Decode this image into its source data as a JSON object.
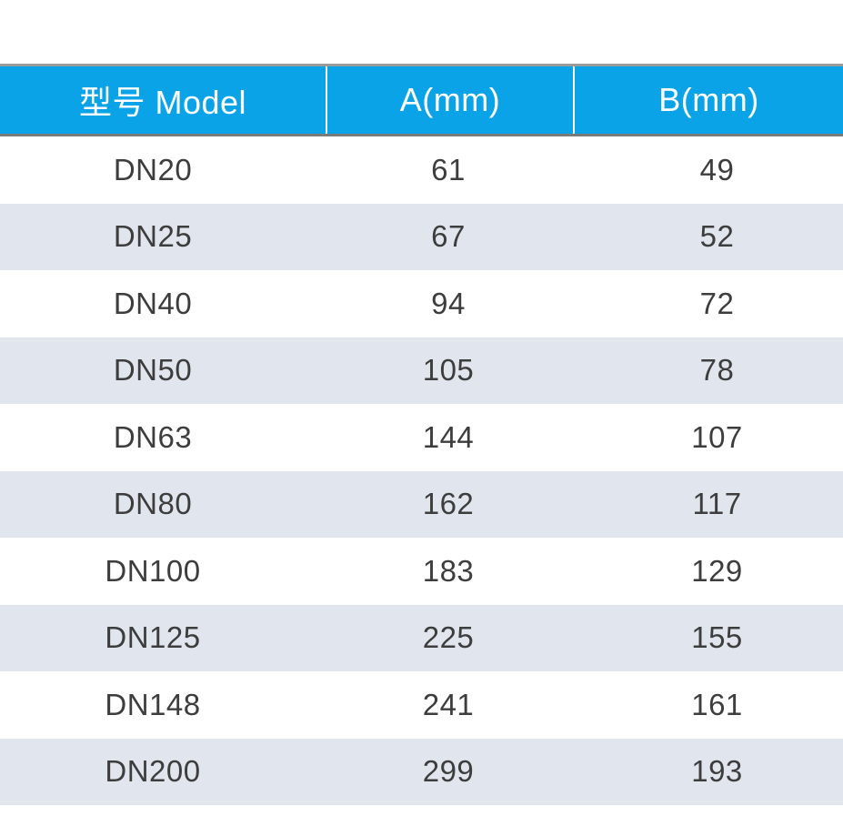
{
  "table": {
    "headers": [
      "型号 Model",
      "A(mm)",
      "B(mm)"
    ],
    "rows": [
      [
        "DN20",
        "61",
        "49"
      ],
      [
        "DN25",
        "67",
        "52"
      ],
      [
        "DN40",
        "94",
        "72"
      ],
      [
        "DN50",
        "105",
        "78"
      ],
      [
        "DN63",
        "144",
        "107"
      ],
      [
        "DN80",
        "162",
        "117"
      ],
      [
        "DN100",
        "183",
        "129"
      ],
      [
        "DN125",
        "225",
        "155"
      ],
      [
        "DN148",
        "241",
        "161"
      ],
      [
        "DN200",
        "299",
        "193"
      ]
    ],
    "colors": {
      "header_bg": "#0aa3e8",
      "header_text": "#ffffff",
      "stripe_bg": "#e1e6ee",
      "body_text": "#3d3d3d"
    }
  }
}
